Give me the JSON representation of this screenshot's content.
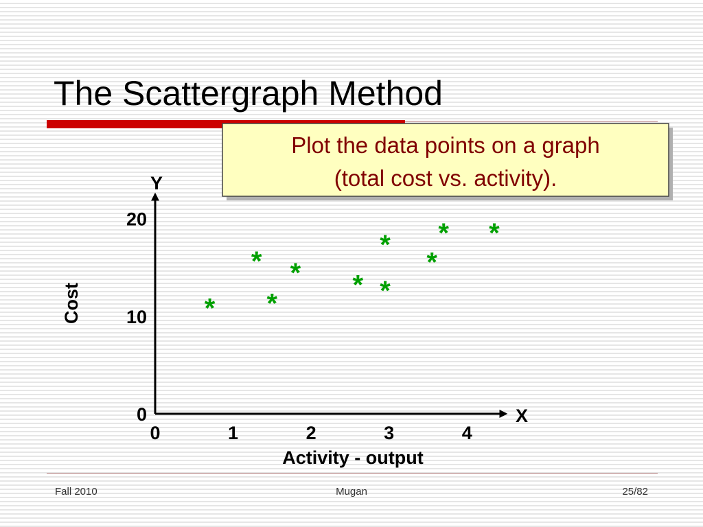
{
  "chart_data": {
    "type": "scatter",
    "title": "The Scattergraph Method",
    "annotation": [
      "Plot the data points on a graph",
      "(total cost vs. activity)."
    ],
    "xlabel": "Activity - output",
    "ylabel": "Cost",
    "x_end_label": "X",
    "y_end_label": "Y",
    "x": [
      0.7,
      1.3,
      1.5,
      1.8,
      2.6,
      2.95,
      2.95,
      3.55,
      3.7,
      4.35
    ],
    "values": [
      11.5,
      16.3,
      12.0,
      15.1,
      13.9,
      18.0,
      13.3,
      16.2,
      19.2,
      19.2
    ],
    "color": "#00a000",
    "marker": "*",
    "xlim": [
      0,
      4.5
    ],
    "ylim": [
      0,
      22.5
    ],
    "xticks": [
      0,
      1,
      2,
      3,
      4
    ],
    "yticks": [
      0,
      10,
      20
    ]
  },
  "footer": {
    "left": "Fall 2010",
    "center": "Mugan",
    "right": "25/82"
  }
}
